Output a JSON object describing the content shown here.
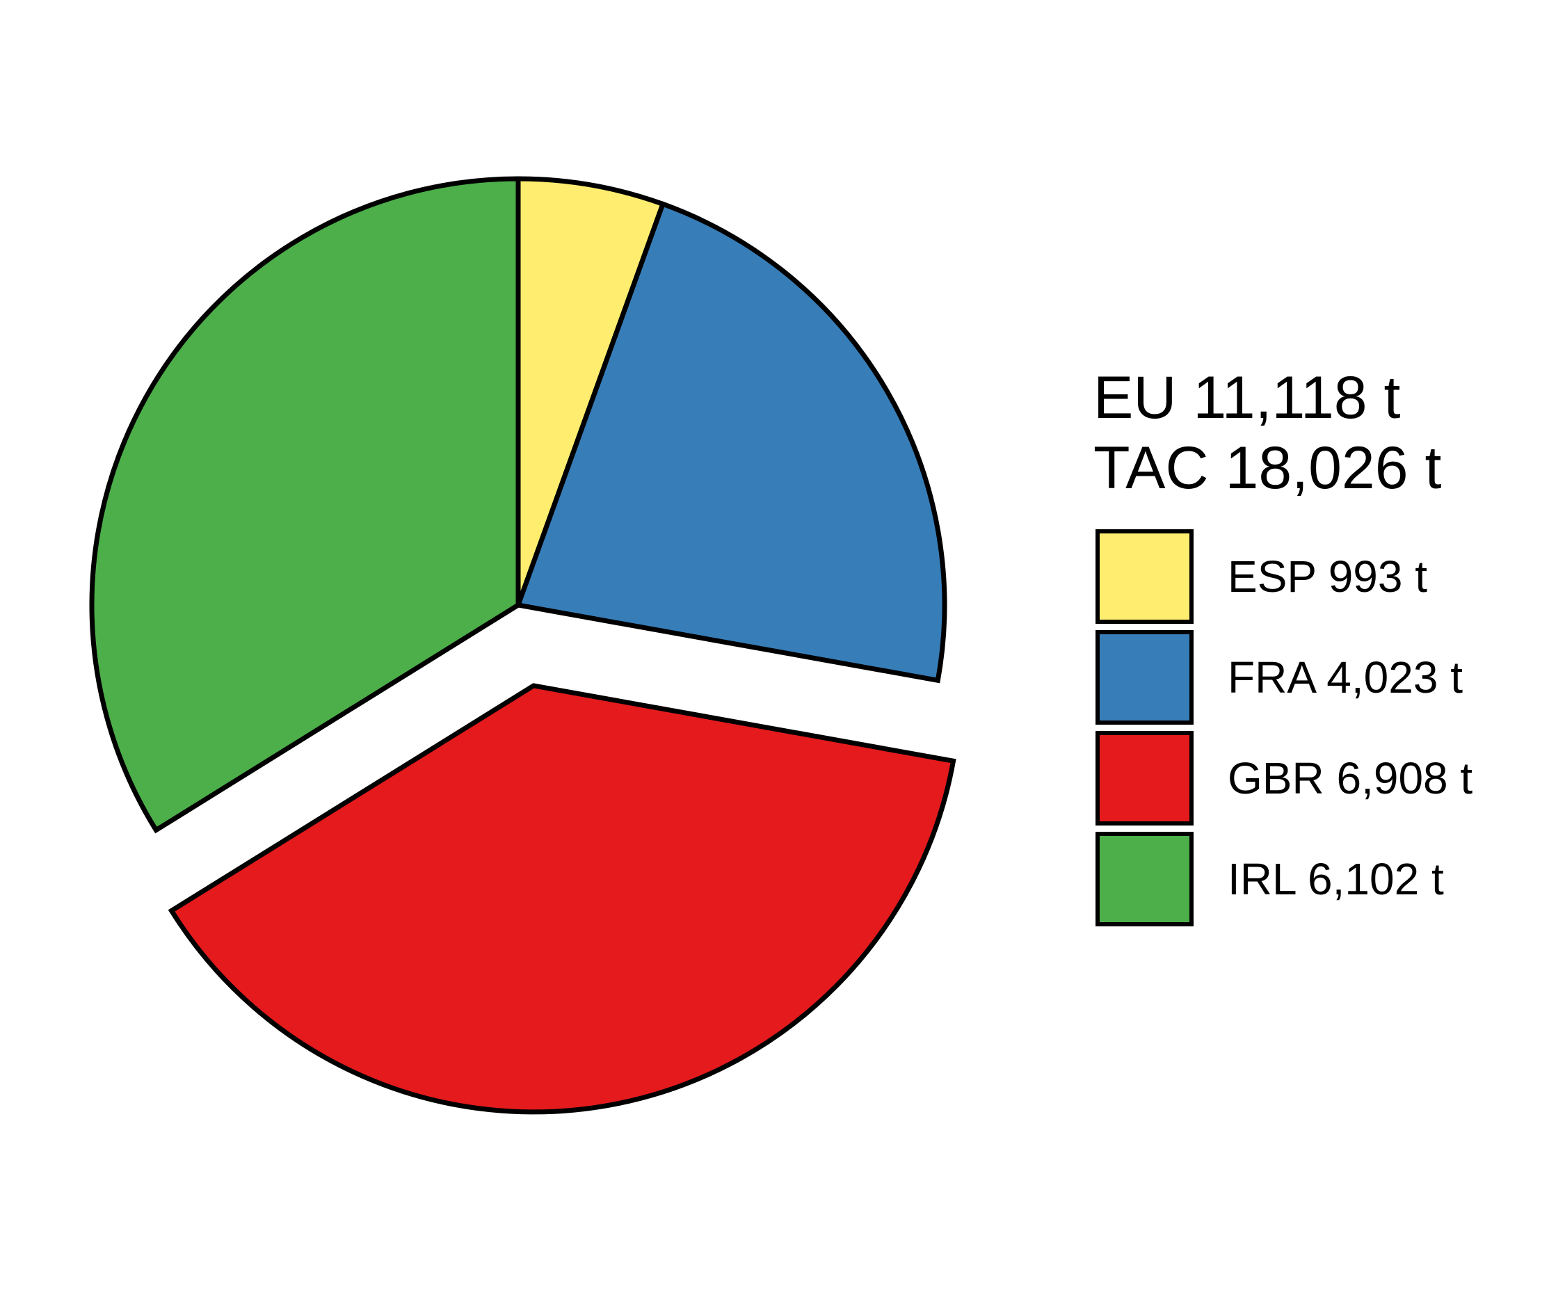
{
  "chart_data": {
    "type": "pie",
    "title": "",
    "summary": {
      "eu_label": "EU 11,118 t",
      "tac_label": "TAC 18,026 t"
    },
    "slices": [
      {
        "category": "ESP",
        "value": 993,
        "label": "ESP 993 t",
        "color": "#FFED6F",
        "exploded": false
      },
      {
        "category": "FRA",
        "value": 4023,
        "label": "FRA 4,023 t",
        "color": "#377EB8",
        "exploded": false
      },
      {
        "category": "GBR",
        "value": 6908,
        "label": "GBR 6,908 t",
        "color": "#E41A1C",
        "exploded": true
      },
      {
        "category": "IRL",
        "value": 6102,
        "label": "IRL 6,102 t",
        "color": "#4DAF4A",
        "exploded": false
      }
    ],
    "start_angle": "12 o'clock",
    "direction": "clockwise",
    "legend_position": "right",
    "outline_color": "#000000"
  }
}
